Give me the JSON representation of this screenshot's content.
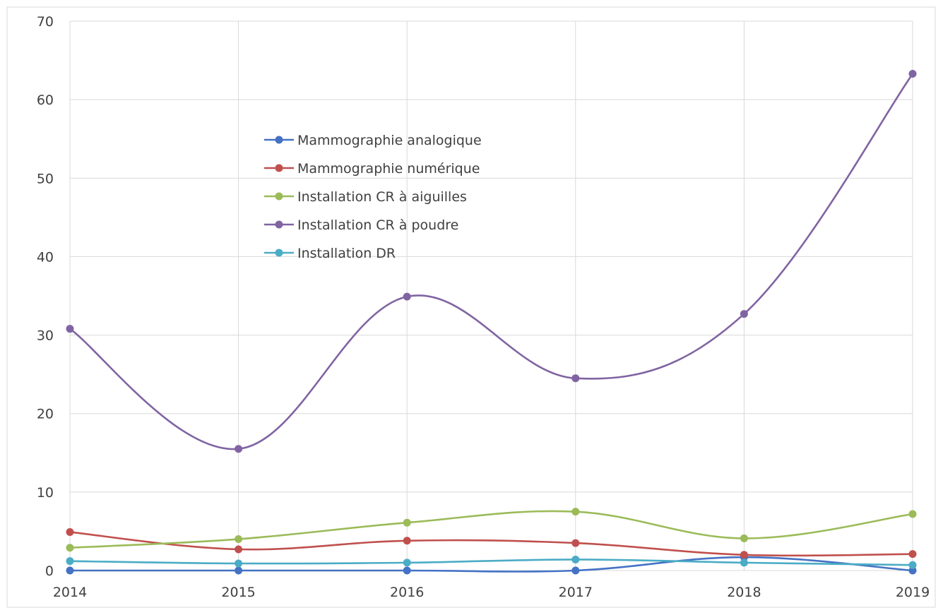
{
  "chart_data": {
    "type": "line",
    "smooth": true,
    "title": "",
    "xlabel": "",
    "ylabel": "",
    "categories": [
      "2014",
      "2015",
      "2016",
      "2017",
      "2018",
      "2019"
    ],
    "ylim": [
      0,
      70
    ],
    "yticks": [
      0,
      10,
      20,
      30,
      40,
      50,
      60,
      70
    ],
    "grid": true,
    "legend_position": "upper-left-inside",
    "series": [
      {
        "name": "Mammographie analogique",
        "color": "#4472C4",
        "values": [
          0,
          0,
          0,
          0,
          1.7,
          0
        ]
      },
      {
        "name": "Mammographie numérique",
        "color": "#C0504D",
        "values": [
          4.9,
          2.7,
          3.8,
          3.5,
          2.0,
          2.1
        ]
      },
      {
        "name": "Installation CR à aiguilles",
        "color": "#9BBB59",
        "values": [
          2.9,
          4.0,
          6.1,
          7.5,
          4.1,
          7.2
        ]
      },
      {
        "name": "Installation CR à poudre",
        "color": "#8064A2",
        "values": [
          30.8,
          15.5,
          34.9,
          24.5,
          32.7,
          63.3
        ]
      },
      {
        "name": "Installation DR",
        "color": "#4BACC6",
        "values": [
          1.2,
          0.9,
          1.0,
          1.4,
          1.0,
          0.7
        ]
      }
    ]
  }
}
